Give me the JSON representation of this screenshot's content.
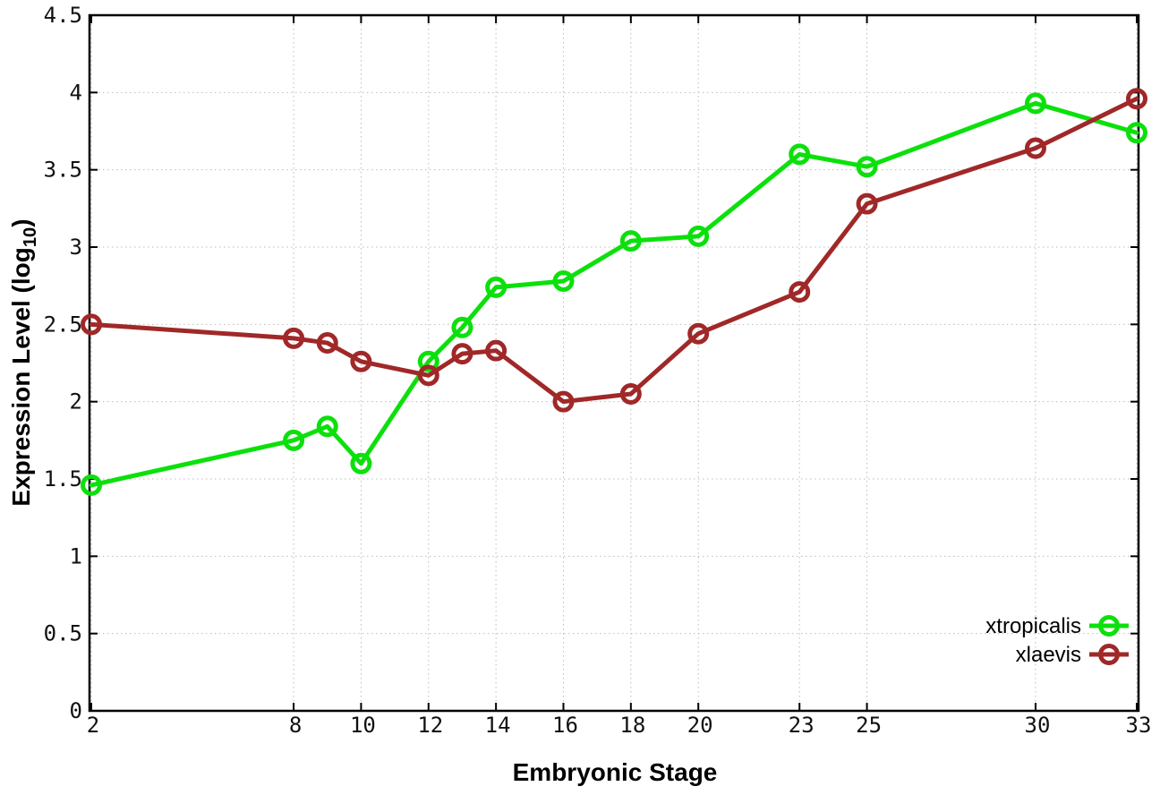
{
  "chart_data": {
    "type": "line",
    "title": "",
    "xlabel": "Embryonic Stage",
    "ylabel": "Expression Level (log10)",
    "ylabel_parts": {
      "prefix": "Expression Level (log",
      "sub": "10",
      "suffix": ")"
    },
    "x": [
      2,
      8,
      9,
      10,
      12,
      13,
      14,
      16,
      18,
      20,
      23,
      25,
      30,
      33
    ],
    "series": [
      {
        "name": "xtropicalis",
        "color": "#0ce00c",
        "values": [
          1.46,
          1.75,
          1.84,
          1.6,
          2.26,
          2.48,
          2.74,
          2.78,
          3.04,
          3.07,
          3.6,
          3.52,
          3.93,
          3.74
        ]
      },
      {
        "name": "xlaevis",
        "color": "#a02828",
        "values": [
          2.5,
          2.41,
          2.38,
          2.26,
          2.17,
          2.31,
          2.33,
          2.0,
          2.05,
          2.44,
          2.71,
          3.28,
          3.64,
          3.96
        ]
      }
    ],
    "xlim": [
      2,
      33
    ],
    "ylim": [
      0,
      4.5
    ],
    "x_ticks": {
      "values": [
        2,
        8,
        10,
        12,
        14,
        16,
        18,
        20,
        23,
        25,
        30,
        33
      ],
      "labels": [
        "2",
        "8",
        "10",
        "12",
        "14",
        "16",
        "18",
        "20",
        "23",
        "25",
        "30",
        "33"
      ]
    },
    "y_ticks": {
      "values": [
        0,
        0.5,
        1,
        1.5,
        2,
        2.5,
        3,
        3.5,
        4,
        4.5
      ],
      "labels": [
        "0",
        "0.5",
        "1",
        "1.5",
        "2",
        "2.5",
        "3",
        "3.5",
        "4",
        "4.5"
      ]
    },
    "grid": true,
    "legend_position": "bottom-right",
    "marker": "open-circle",
    "colors": {
      "background": "#ffffff",
      "axis": "#000000",
      "grid": "#bcbcbc",
      "tick_label": "#111111"
    }
  }
}
